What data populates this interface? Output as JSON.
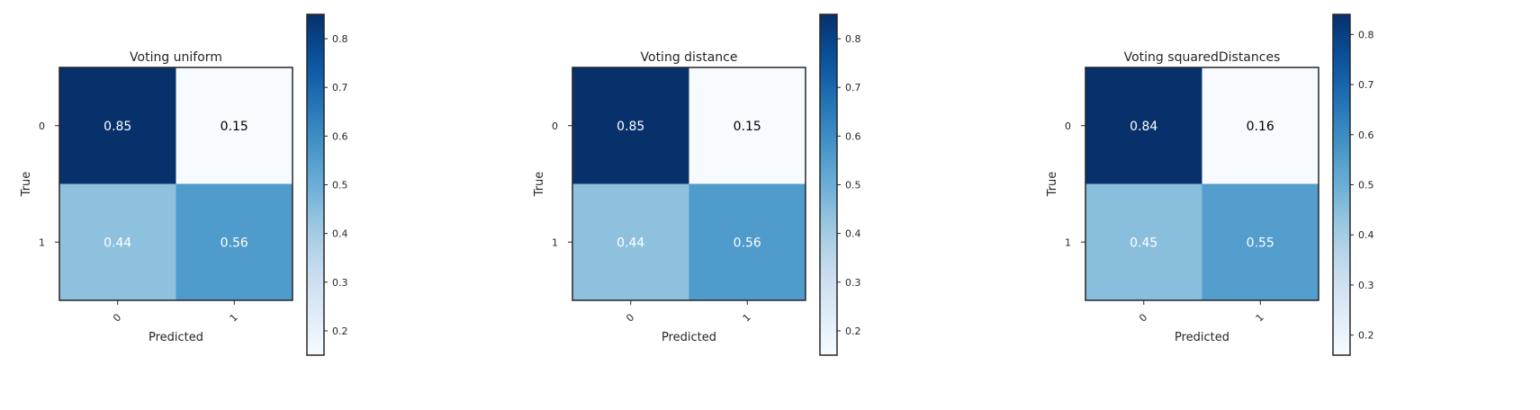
{
  "chart_data": [
    {
      "type": "heatmap",
      "title": "Voting uniform",
      "xlabel": "Predicted",
      "ylabel": "True",
      "x_categories": [
        "0",
        "1"
      ],
      "y_categories": [
        "0",
        "1"
      ],
      "values": [
        [
          0.85,
          0.15
        ],
        [
          0.44,
          0.56
        ]
      ],
      "colormap": "Blues",
      "colorbar": {
        "vmin": 0.15,
        "vmax": 0.85,
        "ticks": [
          0.2,
          0.3,
          0.4,
          0.5,
          0.6,
          0.7,
          0.8
        ],
        "tick_labels": [
          "0.2",
          "0.3",
          "0.4",
          "0.5",
          "0.6",
          "0.7",
          "0.8"
        ]
      }
    },
    {
      "type": "heatmap",
      "title": "Voting distance",
      "xlabel": "Predicted",
      "ylabel": "True",
      "x_categories": [
        "0",
        "1"
      ],
      "y_categories": [
        "0",
        "1"
      ],
      "values": [
        [
          0.85,
          0.15
        ],
        [
          0.44,
          0.56
        ]
      ],
      "colormap": "Blues",
      "colorbar": {
        "vmin": 0.15,
        "vmax": 0.85,
        "ticks": [
          0.2,
          0.3,
          0.4,
          0.5,
          0.6,
          0.7,
          0.8
        ],
        "tick_labels": [
          "0.2",
          "0.3",
          "0.4",
          "0.5",
          "0.6",
          "0.7",
          "0.8"
        ]
      }
    },
    {
      "type": "heatmap",
      "title": "Voting squaredDistances",
      "xlabel": "Predicted",
      "ylabel": "True",
      "x_categories": [
        "0",
        "1"
      ],
      "y_categories": [
        "0",
        "1"
      ],
      "values": [
        [
          0.84,
          0.16
        ],
        [
          0.45,
          0.55
        ]
      ],
      "colormap": "Blues",
      "colorbar": {
        "vmin": 0.16,
        "vmax": 0.84,
        "ticks": [
          0.2,
          0.3,
          0.4,
          0.5,
          0.6,
          0.7,
          0.8
        ],
        "tick_labels": [
          "0.2",
          "0.3",
          "0.4",
          "0.5",
          "0.6",
          "0.7",
          "0.8"
        ]
      }
    }
  ]
}
